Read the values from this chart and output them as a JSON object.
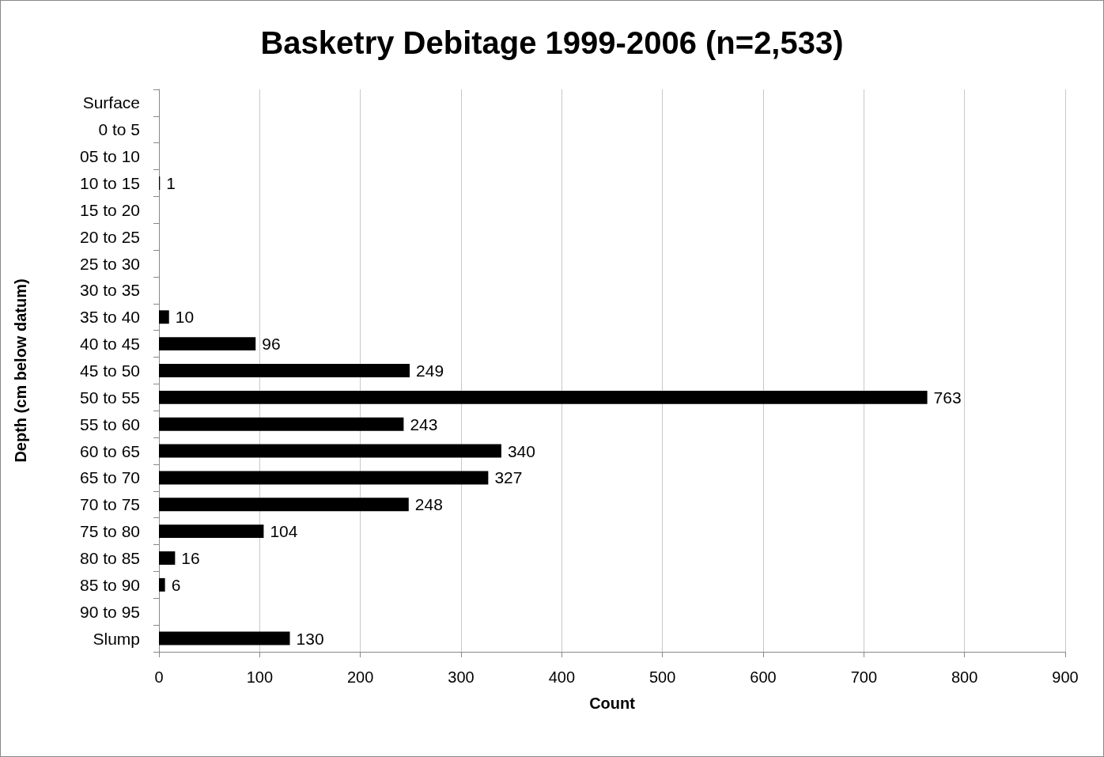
{
  "chart_data": {
    "type": "bar",
    "orientation": "horizontal",
    "title": "Basketry Debitage 1999-2006 (n=2,533)",
    "xlabel": "Count",
    "ylabel": "Depth (cm below datum)",
    "categories": [
      "Surface",
      "0 to 5",
      "05 to 10",
      "10 to 15",
      "15 to 20",
      "20 to 25",
      "25 to 30",
      "30 to 35",
      "35 to 40",
      "40 to 45",
      "45 to 50",
      "50 to 55",
      "55 to 60",
      "60 to 65",
      "65 to 70",
      "70 to 75",
      "75 to 80",
      "80 to 85",
      "85 to 90",
      "90 to 95",
      "Slump"
    ],
    "values": [
      null,
      null,
      null,
      1,
      null,
      null,
      null,
      null,
      10,
      96,
      249,
      763,
      243,
      340,
      327,
      248,
      104,
      16,
      6,
      null,
      130
    ],
    "color": "#000000",
    "xlim": [
      0,
      900
    ],
    "xticks": [
      0,
      100,
      200,
      300,
      400,
      500,
      600,
      700,
      800,
      900
    ],
    "grid": "x",
    "data_labels": true
  }
}
